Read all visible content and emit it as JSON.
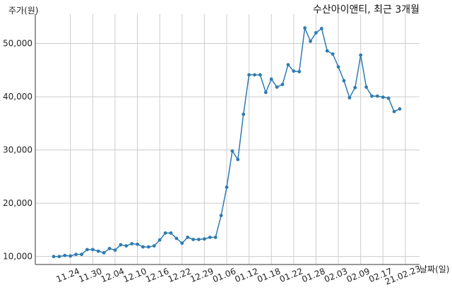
{
  "chart_data": {
    "type": "line",
    "title": "수산아이앤티, 최근 3개월",
    "ylabel": "주가(원)",
    "xlabel": "날짜(일)",
    "ylim": [
      8500,
      55500
    ],
    "yticks": [
      10000,
      20000,
      30000,
      40000,
      50000
    ],
    "ytick_labels": [
      "10,000",
      "20,000",
      "30,000",
      "40,000",
      "50,000"
    ],
    "xtick_labels": [
      "11.24",
      "11.30",
      "12.04",
      "12.10",
      "12.16",
      "12.22",
      "12.29",
      "01.06",
      "01.12",
      "01.18",
      "01.22",
      "01.28",
      "02.03",
      "02.09",
      "02.17",
      "21.02.23"
    ],
    "xtick_index": [
      3,
      7,
      11,
      15,
      19,
      23,
      27,
      31,
      35,
      39,
      43,
      47,
      51,
      55,
      59,
      63
    ],
    "grid": true,
    "color": "#2e7bb0",
    "values": [
      10000,
      10000,
      10200,
      10100,
      10400,
      10400,
      11300,
      11300,
      11000,
      10700,
      11500,
      11200,
      12200,
      12000,
      12400,
      12300,
      11800,
      11800,
      12000,
      13100,
      14400,
      14400,
      13400,
      12500,
      13600,
      13200,
      13200,
      13300,
      13600,
      13600,
      17700,
      23000,
      29800,
      28200,
      36700,
      44100,
      44100,
      44100,
      40800,
      43300,
      41800,
      42300,
      46000,
      44800,
      44700,
      52900,
      50400,
      52000,
      52800,
      48600,
      48000,
      45600,
      43000,
      39800,
      41700,
      47800,
      41800,
      40100,
      40100,
      39900,
      39700,
      37200,
      37700
    ]
  }
}
